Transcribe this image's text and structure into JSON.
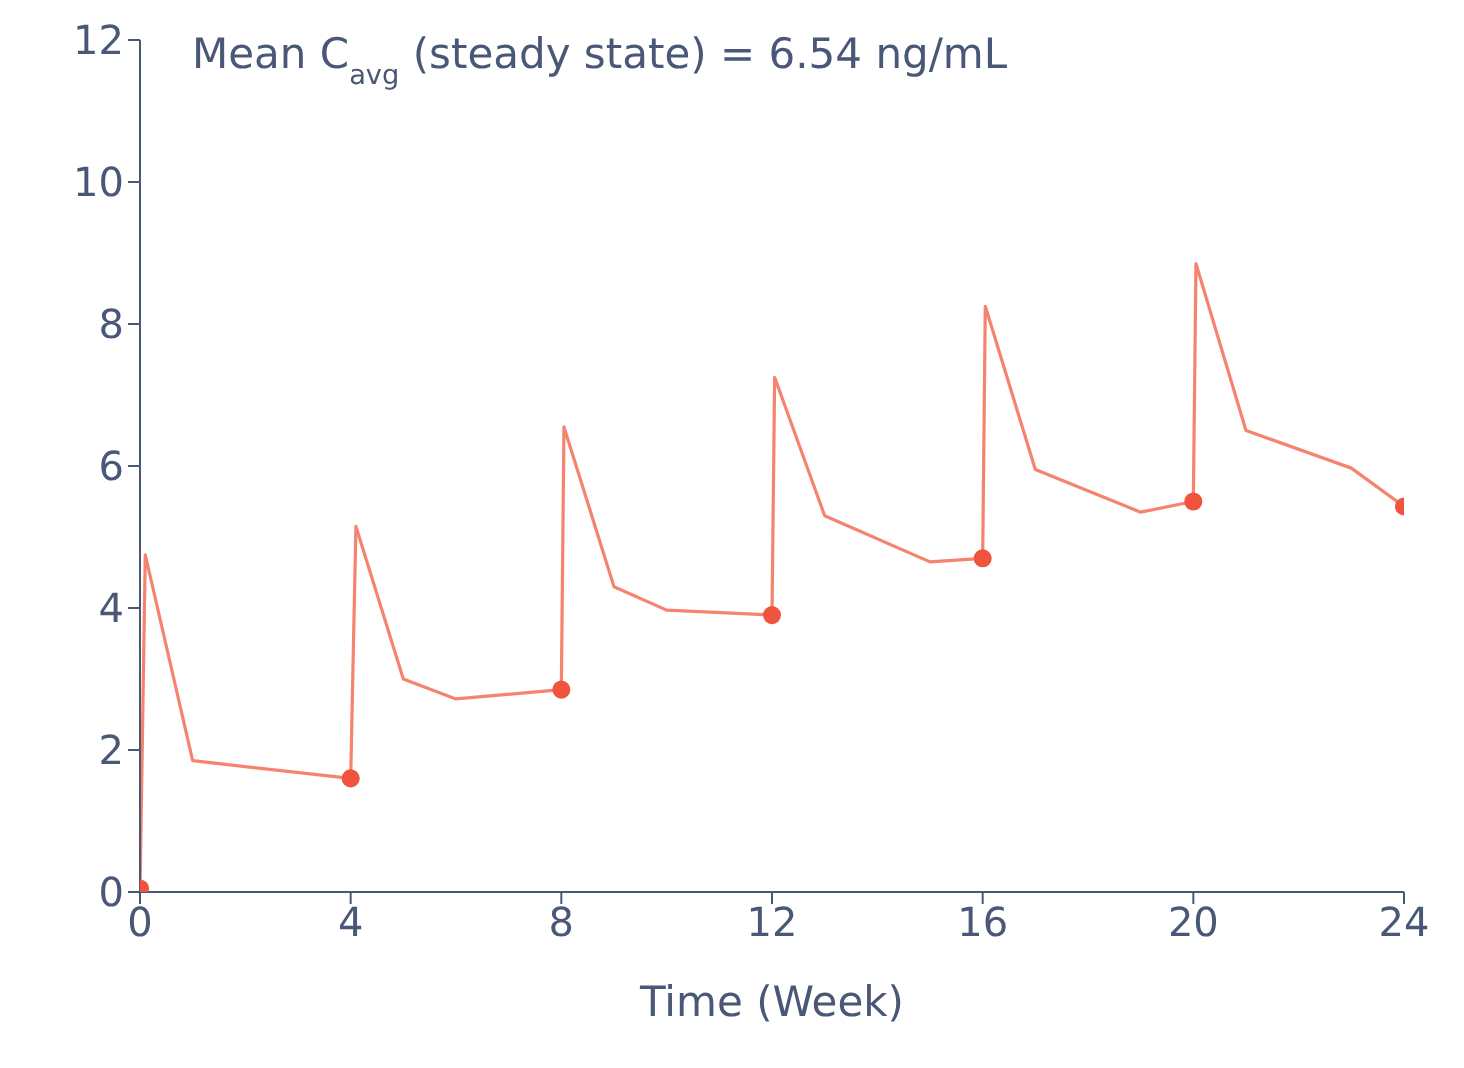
{
  "chart_data": {
    "type": "line",
    "xlabel": "Time (Week)",
    "annotations": [
      "Mean C$_{avg}$ (steady state) = 6.54 ng/mL"
    ],
    "xlim": [
      0,
      24
    ],
    "xticks": [
      0,
      4,
      8,
      12,
      16,
      20,
      24
    ],
    "ylim": [
      0,
      12
    ],
    "yticks": [
      0,
      2,
      4,
      6,
      8,
      10,
      12
    ],
    "grid": false,
    "series": [
      {
        "color": "#f5836e",
        "marker": "none",
        "x": [
          0,
          0.1,
          1,
          4,
          4.1,
          5,
          6,
          8,
          8.05,
          9,
          10,
          12,
          12.05,
          13,
          15,
          16,
          16.05,
          17,
          19,
          20,
          20.05,
          21,
          23,
          24
        ],
        "values": [
          0,
          4.75,
          1.85,
          1.6,
          5.15,
          3.0,
          2.72,
          2.85,
          6.55,
          4.3,
          3.97,
          3.9,
          7.25,
          5.3,
          4.65,
          4.7,
          8.25,
          5.95,
          5.35,
          5.5,
          8.85,
          6.5,
          5.97,
          5.43
        ]
      },
      {
        "type": "scatter",
        "color": "#f0533e",
        "marker": "circle",
        "x": [
          0,
          4,
          8,
          12,
          16,
          20,
          24
        ],
        "values": [
          0.05,
          1.6,
          2.85,
          3.9,
          4.7,
          5.5,
          5.43
        ]
      }
    ]
  }
}
